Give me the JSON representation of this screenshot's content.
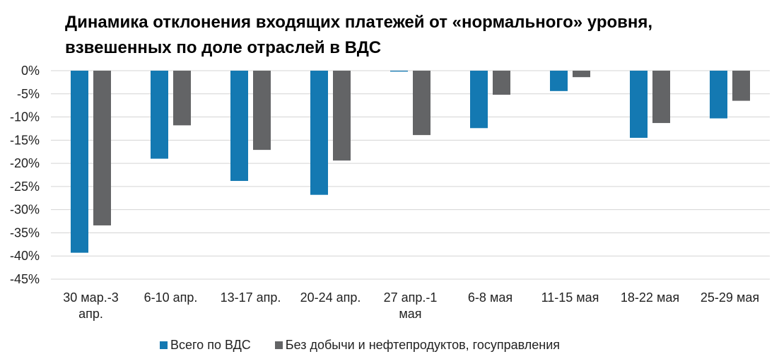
{
  "chart_data": {
    "type": "bar",
    "title_lines": [
      "Динамика отклонения входящих платежей от «нормального» уровня,",
      "взвешенных по доле отраслей в ВДС"
    ],
    "categories": [
      [
        "30 мар.-3",
        "апр."
      ],
      [
        "6-10 апр."
      ],
      [
        "13-17 апр."
      ],
      [
        "20-24 апр."
      ],
      [
        "27 апр.-1",
        "мая"
      ],
      [
        "6-8 мая"
      ],
      [
        "11-15 мая"
      ],
      [
        "18-22 мая"
      ],
      [
        "25-29 мая"
      ]
    ],
    "series": [
      {
        "name": "Всего по ВДС",
        "color": "#1479B2",
        "values": [
          -39.3,
          -19.0,
          -23.8,
          -26.8,
          -0.2,
          -12.4,
          -4.4,
          -14.5,
          -10.3
        ]
      },
      {
        "name": "Без добычи и нефтепродуктов, госуправления",
        "color": "#636466",
        "values": [
          -33.4,
          -11.8,
          -17.1,
          -19.4,
          -13.9,
          -5.2,
          -1.4,
          -11.3,
          -6.5
        ]
      }
    ],
    "y_ticks": [
      "0%",
      "-5%",
      "-10%",
      "-15%",
      "-20%",
      "-25%",
      "-30%",
      "-35%",
      "-40%",
      "-45%"
    ],
    "ylim": [
      -45,
      0
    ],
    "y_unit": "%",
    "grid": true,
    "legend_position": "bottom",
    "gridline_color": "#d4d4d4"
  }
}
